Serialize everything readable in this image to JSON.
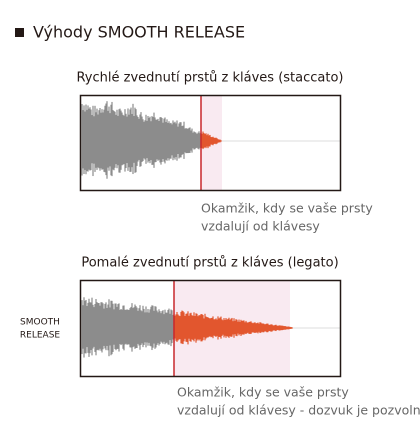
{
  "header": {
    "title": "Výhody SMOOTH RELEASE"
  },
  "panels": [
    {
      "title": "Rychlé zvednutí prstů z kláves (staccato)",
      "caption": [
        "Okamžik, kdy se vaše prsty",
        "vzdalují od klávesy"
      ]
    },
    {
      "title": "Pomalé zvednutí prstů z kláves (legato)",
      "side_label": [
        "SMOOTH",
        "RELEASE"
      ],
      "caption": [
        "Okamžik, kdy se vaše prsty",
        "vzdalují od klávesy - dozvuk je pozvolný"
      ]
    }
  ]
}
